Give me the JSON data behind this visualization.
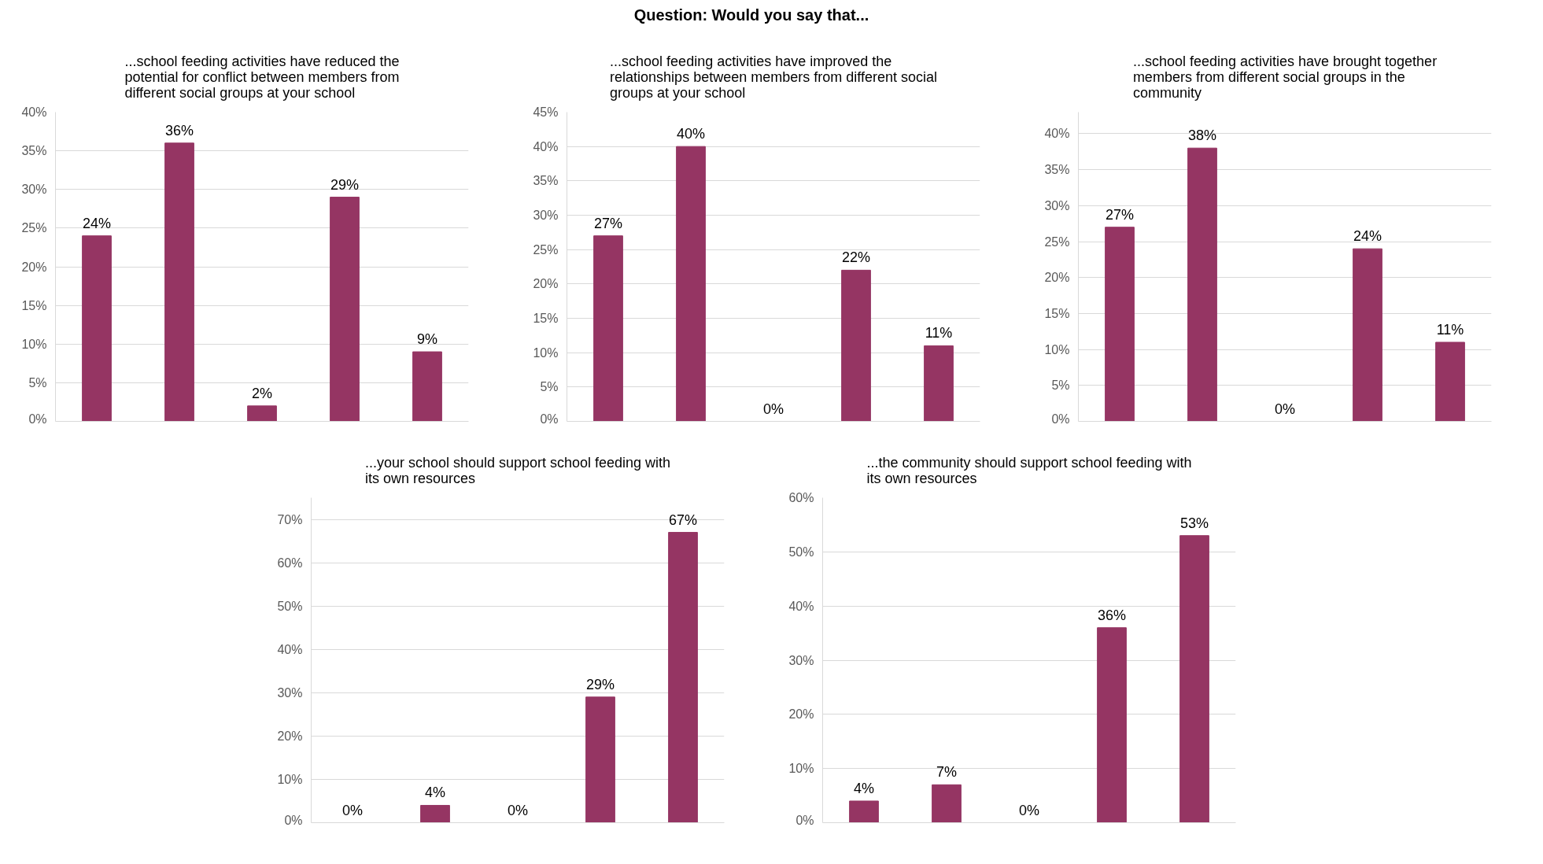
{
  "chart_data": [
    {
      "type": "other",
      "title": "Question: Would you say that..."
    },
    {
      "type": "bar",
      "title": "...school feeding activities have reduced the potential for conflict between members from different social groups at your school",
      "categories": [
        null,
        null,
        null,
        null,
        null
      ],
      "values": [
        24,
        36,
        2,
        29,
        9
      ],
      "value_labels": [
        "24%",
        "36%",
        "2%",
        "29%",
        "9%"
      ],
      "color": "#953563",
      "ylim": [
        0,
        40
      ],
      "yticks": [
        {
          "value": 0,
          "label": "0%"
        },
        {
          "value": 5,
          "label": "5%"
        },
        {
          "value": 10,
          "label": "10%"
        },
        {
          "value": 15,
          "label": "15%"
        },
        {
          "value": 20,
          "label": "20%"
        },
        {
          "value": 25,
          "label": "25%"
        },
        {
          "value": 30,
          "label": "30%"
        },
        {
          "value": 35,
          "label": "35%"
        },
        {
          "value": 40,
          "label": "40%"
        }
      ],
      "grid": "y",
      "tick_labels": "y"
    },
    {
      "type": "bar",
      "title": "...school feeding activities have improved the relationships between members from different social groups at your school",
      "categories": [
        null,
        null,
        null,
        null,
        null
      ],
      "values": [
        27,
        40,
        0,
        22,
        11
      ],
      "value_labels": [
        "27%",
        "40%",
        "0%",
        "22%",
        "11%"
      ],
      "color": "#953563",
      "ylim": [
        0,
        45
      ],
      "yticks": [
        {
          "value": 0,
          "label": "0%"
        },
        {
          "value": 5,
          "label": "5%"
        },
        {
          "value": 10,
          "label": "10%"
        },
        {
          "value": 15,
          "label": "15%"
        },
        {
          "value": 20,
          "label": "20%"
        },
        {
          "value": 25,
          "label": "25%"
        },
        {
          "value": 30,
          "label": "30%"
        },
        {
          "value": 35,
          "label": "35%"
        },
        {
          "value": 40,
          "label": "40%"
        },
        {
          "value": 45,
          "label": "45%"
        }
      ],
      "grid": "y",
      "tick_labels": "y"
    },
    {
      "type": "bar",
      "title": "...school feeding activities have brought together members from different social groups in the community",
      "categories": [
        null,
        null,
        null,
        null,
        null
      ],
      "values": [
        27,
        38,
        0,
        24,
        11
      ],
      "value_labels": [
        "27%",
        "38%",
        "0%",
        "24%",
        "11%"
      ],
      "color": "#953563",
      "ylim": [
        0,
        43
      ],
      "yticks": [
        {
          "value": 0,
          "label": "0%"
        },
        {
          "value": 5,
          "label": "5%"
        },
        {
          "value": 10,
          "label": "10%"
        },
        {
          "value": 15,
          "label": "15%"
        },
        {
          "value": 20,
          "label": "20%"
        },
        {
          "value": 25,
          "label": "25%"
        },
        {
          "value": 30,
          "label": "30%"
        },
        {
          "value": 35,
          "label": "35%"
        },
        {
          "value": 40,
          "label": "40%"
        }
      ],
      "grid": "y",
      "tick_labels": "y"
    },
    {
      "type": "bar",
      "title": "...your school should support school feeding with its own resources",
      "categories": [
        null,
        null,
        null,
        null,
        null
      ],
      "values": [
        0,
        4,
        0,
        29,
        67
      ],
      "value_labels": [
        "0%",
        "4%",
        "0%",
        "29%",
        "67%"
      ],
      "color": "#953563",
      "ylim": [
        0,
        75
      ],
      "yticks": [
        {
          "value": 0,
          "label": "0%"
        },
        {
          "value": 10,
          "label": "10%"
        },
        {
          "value": 20,
          "label": "20%"
        },
        {
          "value": 30,
          "label": "30%"
        },
        {
          "value": 40,
          "label": "40%"
        },
        {
          "value": 50,
          "label": "50%"
        },
        {
          "value": 60,
          "label": "60%"
        },
        {
          "value": 70,
          "label": "70%"
        }
      ],
      "grid": "y",
      "tick_labels": "y"
    },
    {
      "type": "bar",
      "title": "...the community should support school feeding with its own resources",
      "categories": [
        null,
        null,
        null,
        null,
        null
      ],
      "values": [
        4,
        7,
        0,
        36,
        53
      ],
      "value_labels": [
        "4%",
        "7%",
        "0%",
        "36%",
        "53%"
      ],
      "color": "#953563",
      "ylim": [
        0,
        60
      ],
      "yticks": [
        {
          "value": 0,
          "label": "0%"
        },
        {
          "value": 10,
          "label": "10%"
        },
        {
          "value": 20,
          "label": "20%"
        },
        {
          "value": 30,
          "label": "30%"
        },
        {
          "value": 40,
          "label": "40%"
        },
        {
          "value": 50,
          "label": "50%"
        },
        {
          "value": 60,
          "label": "60%"
        }
      ],
      "grid": "y",
      "tick_labels": "y"
    }
  ]
}
